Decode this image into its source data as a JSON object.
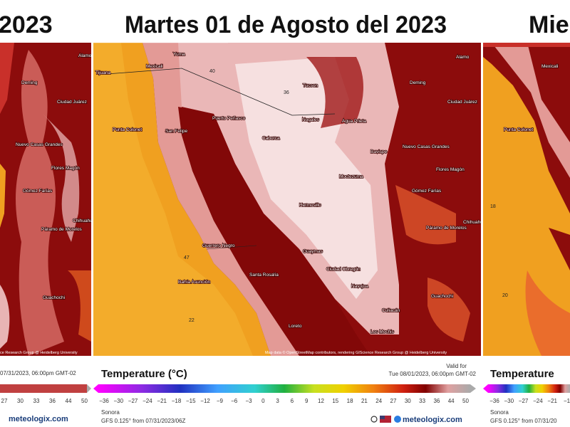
{
  "header": {
    "left_title": "2023",
    "center_title": "Martes 01 de Agosto del 2023",
    "right_title": "Mier"
  },
  "map": {
    "places": [
      "Mexicali",
      "Tijuana",
      "Yuma",
      "Tucson",
      "Nogales",
      "Agua Prieta",
      "Deming",
      "Caborca",
      "Puerto Peñasco",
      "San Felipe",
      "Punta Colonet",
      "Hermosillo",
      "Moctezuma",
      "Bavispe",
      "Nuevo Casas Grandes",
      "Flores Magón",
      "Guaymas",
      "Ciudad Obregón",
      "Navojoa",
      "Los Mochis",
      "Guerrero Negro",
      "Bahía Asunción",
      "Santa Rosalía",
      "Loreto",
      "Culiacán",
      "Gómez Farías",
      "Páramo de Morelos",
      "Guachochi",
      "Chihuahua",
      "Ciudad Juárez",
      "Alamo"
    ],
    "temperatures": [
      "40",
      "36",
      "22",
      "47",
      "18",
      "20"
    ],
    "attribution": "Map data © OpenStreetMap contributors, rendering GIScience Research Group @ Heidelberg University",
    "left_attribution": "ce Research Group @ Heidelberg University"
  },
  "footer": {
    "left": {
      "valid_time": "07/31/2023, 06:00pm GMT-02",
      "ticks": [
        "27",
        "30",
        "33",
        "36",
        "44",
        "50"
      ],
      "brand": "meteologix.com"
    },
    "center": {
      "valid_for": "Valid for",
      "valid_time": "Tue 08/01/2023, 06:00pm GMT-02",
      "legend_title": "Temperature (°C)",
      "ticks": [
        "−36",
        "−30",
        "−27",
        "−24",
        "−21",
        "−18",
        "−15",
        "−12",
        "−9",
        "−6",
        "−3",
        "0",
        "3",
        "6",
        "9",
        "12",
        "15",
        "18",
        "21",
        "24",
        "27",
        "30",
        "33",
        "36",
        "44",
        "50"
      ],
      "region": "Sonora",
      "source": "GFS 0.125° from 07/31/2023/06Z",
      "brand": "meteologix.com"
    },
    "right": {
      "legend_title": "Temperature",
      "ticks": [
        "−36",
        "−30",
        "−27",
        "−24",
        "−21",
        "−1"
      ],
      "region": "Sonora",
      "source": "GFS 0.125° from 07/31/20"
    }
  }
}
